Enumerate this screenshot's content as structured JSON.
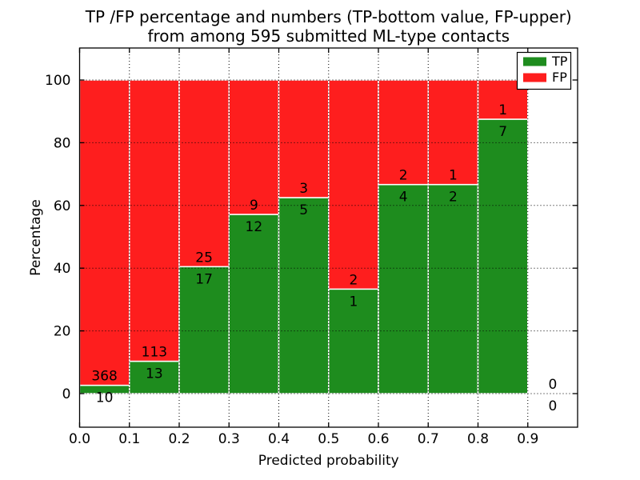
{
  "chart_data": {
    "type": "bar",
    "variant": "stacked-percentage",
    "title_line1": "TP /FP percentage and numbers (TP-bottom value, FP-upper)",
    "title_line2": "from among 595 submitted ML-type contacts",
    "total_contacts": 595,
    "xlabel": "Predicted probability",
    "ylabel": "Percentage",
    "xlim": [
      0.0,
      1.0
    ],
    "ylim": [
      -10.7,
      110.2
    ],
    "xtick_values": [
      0.0,
      0.1,
      0.2,
      0.3,
      0.4,
      0.5,
      0.6,
      0.7,
      0.8,
      0.9
    ],
    "xtick_labels": [
      "0.0",
      "0.1",
      "0.2",
      "0.3",
      "0.4",
      "0.5",
      "0.6",
      "0.7",
      "0.8",
      "0.9"
    ],
    "ytick_values": [
      0,
      20,
      40,
      60,
      80,
      100
    ],
    "ytick_labels": [
      "0",
      "20",
      "40",
      "60",
      "80",
      "100"
    ],
    "grid": "dotted-both-axes",
    "legend_position": "upper-right",
    "colors": {
      "tp": "#1e8c1e",
      "fp": "#fe1e1e",
      "bar_edge": "#ffffff",
      "text": "#000000",
      "background": "#ffffff"
    },
    "series": [
      {
        "name": "TP",
        "color_key": "tp"
      },
      {
        "name": "FP",
        "color_key": "fp"
      }
    ],
    "bins": [
      {
        "x_start": 0.0,
        "x_end": 0.1,
        "tp": 10,
        "fp": 368,
        "tp_pct": 2.65
      },
      {
        "x_start": 0.1,
        "x_end": 0.2,
        "tp": 13,
        "fp": 113,
        "tp_pct": 10.32
      },
      {
        "x_start": 0.2,
        "x_end": 0.3,
        "tp": 17,
        "fp": 25,
        "tp_pct": 40.48
      },
      {
        "x_start": 0.3,
        "x_end": 0.4,
        "tp": 12,
        "fp": 9,
        "tp_pct": 57.14
      },
      {
        "x_start": 0.4,
        "x_end": 0.5,
        "tp": 5,
        "fp": 3,
        "tp_pct": 62.5
      },
      {
        "x_start": 0.5,
        "x_end": 0.6,
        "tp": 1,
        "fp": 2,
        "tp_pct": 33.33
      },
      {
        "x_start": 0.6,
        "x_end": 0.7,
        "tp": 4,
        "fp": 2,
        "tp_pct": 66.67
      },
      {
        "x_start": 0.7,
        "x_end": 0.8,
        "tp": 2,
        "fp": 1,
        "tp_pct": 66.67
      },
      {
        "x_start": 0.8,
        "x_end": 0.9,
        "tp": 7,
        "fp": 1,
        "tp_pct": 87.5
      },
      {
        "x_start": 0.9,
        "x_end": 1.0,
        "tp": 0,
        "fp": 0,
        "tp_pct": 0
      }
    ]
  }
}
